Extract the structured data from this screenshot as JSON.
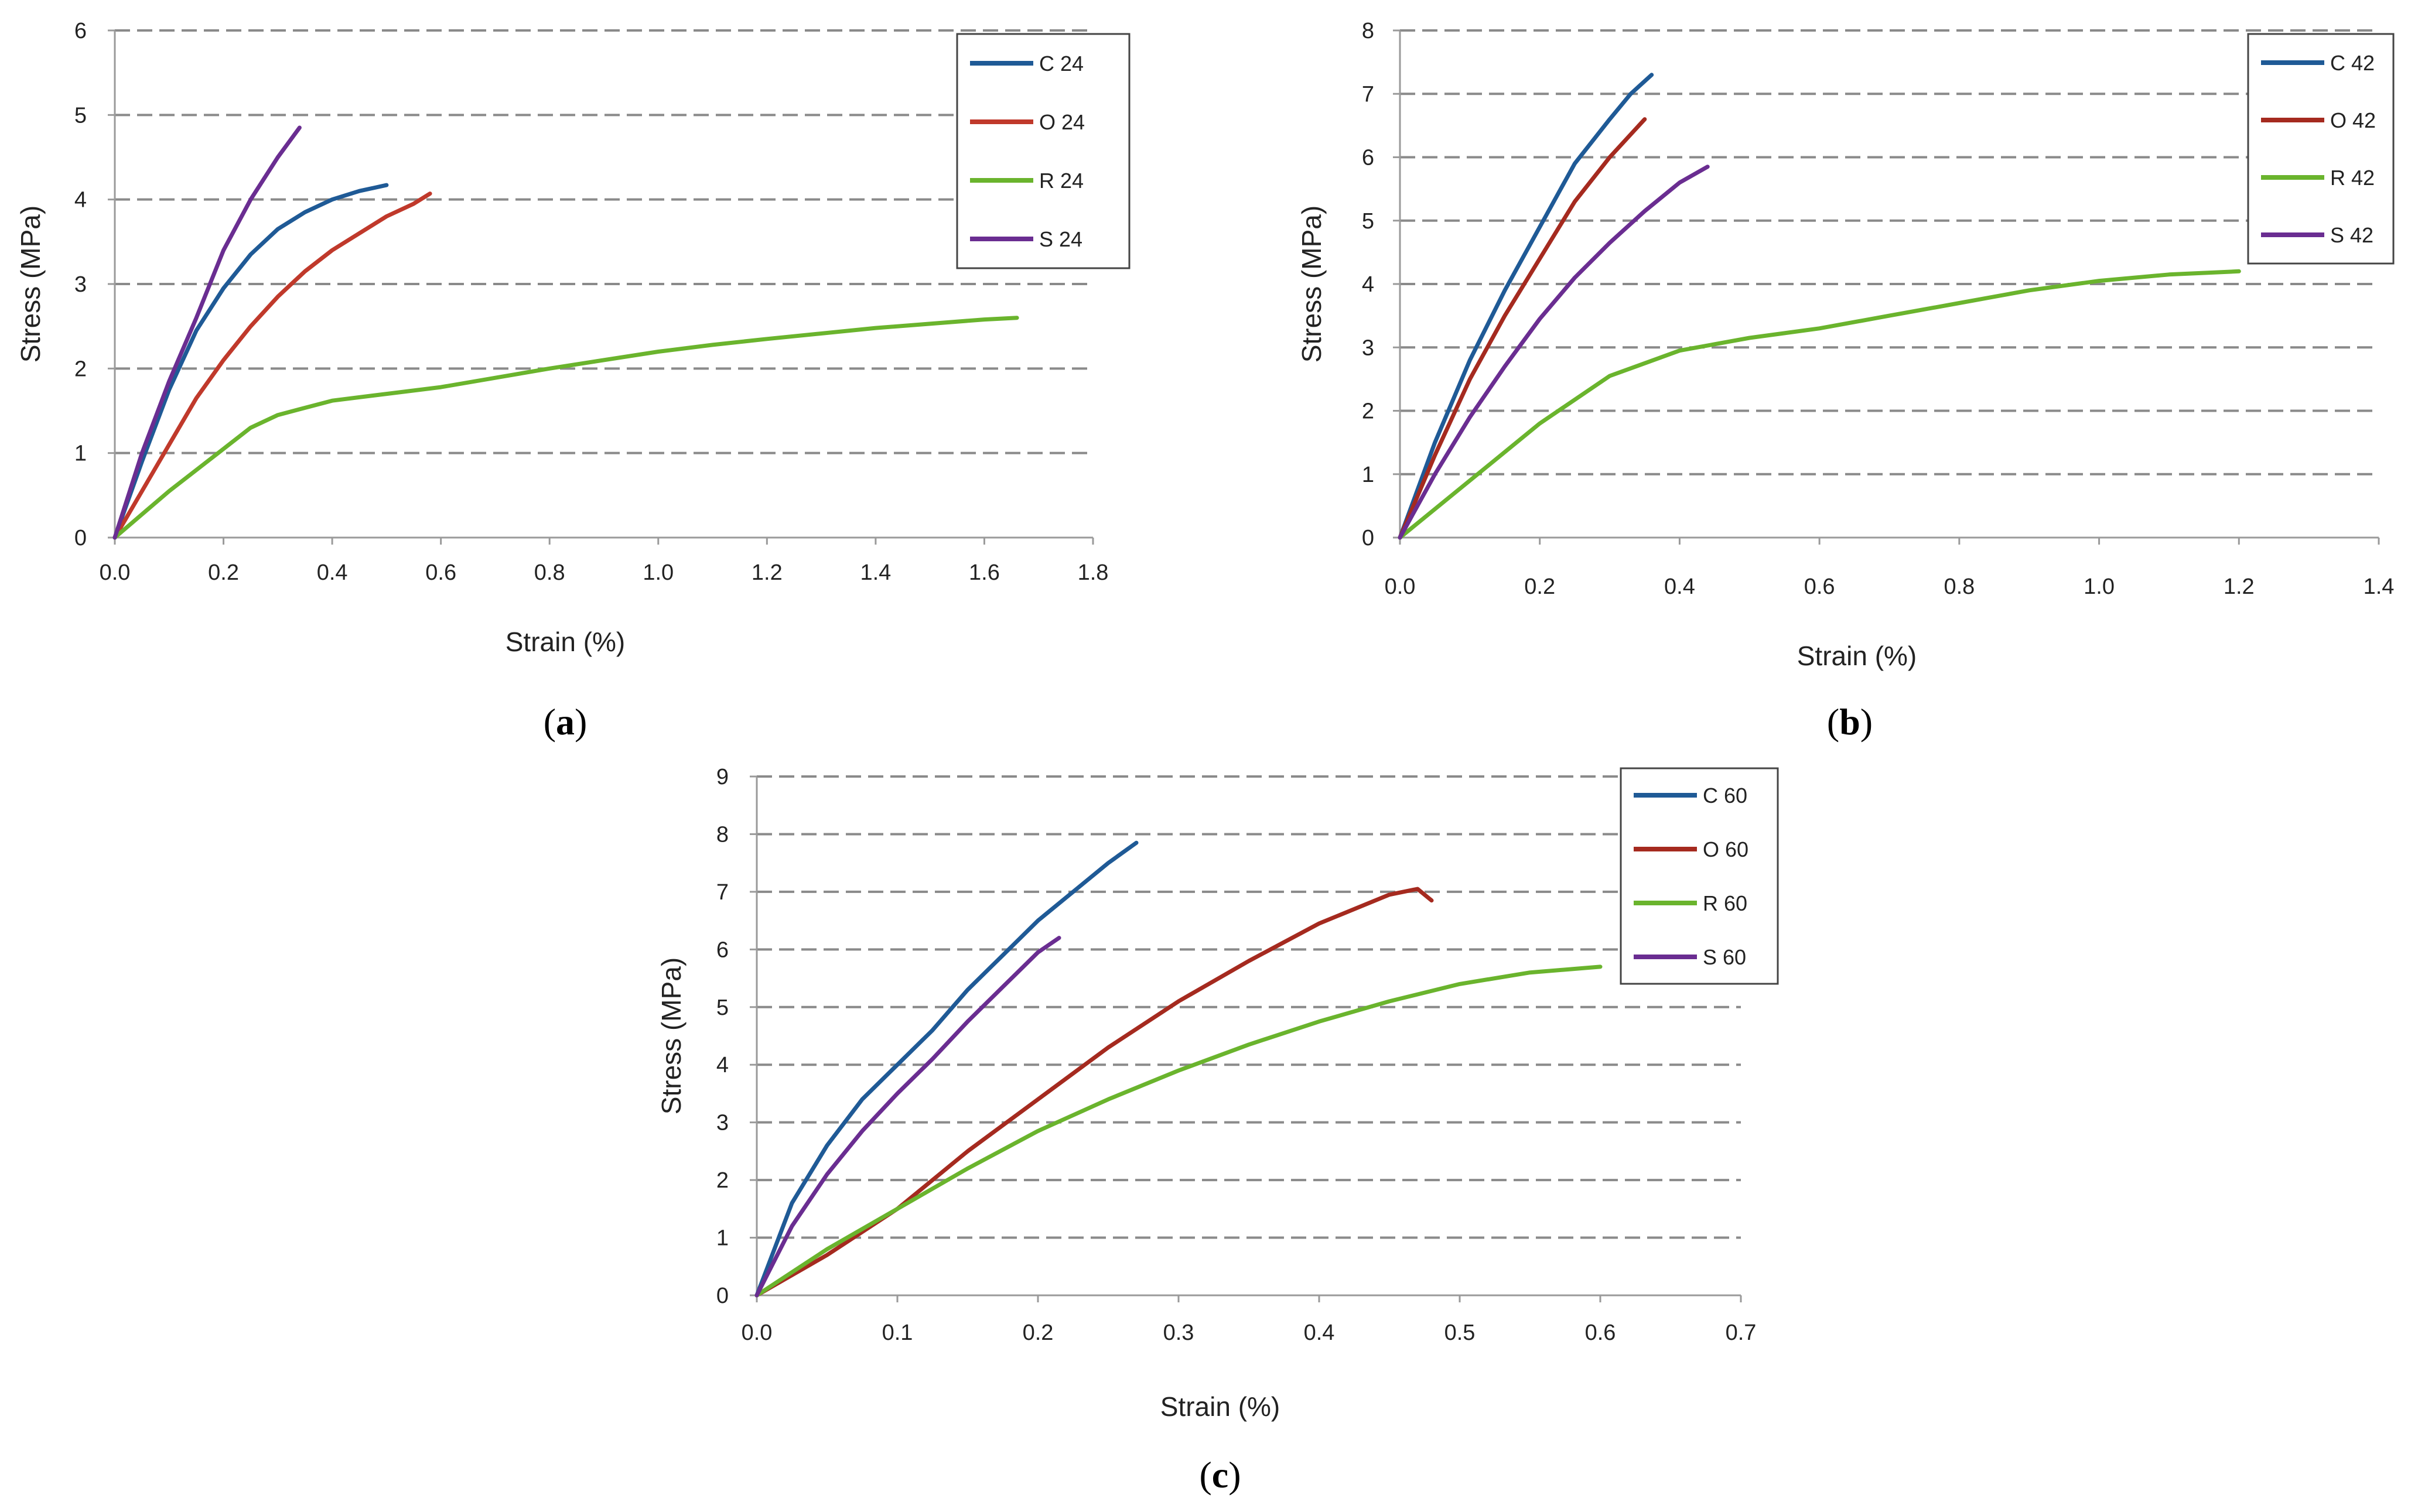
{
  "chart_data": [
    {
      "type": "line",
      "panel_label": "a",
      "xlabel": "Strain (%)",
      "ylabel": "Stress (MPa)",
      "xlim": [
        0,
        1.8
      ],
      "ylim": [
        0,
        6
      ],
      "xticks": [
        "0.0",
        "0.2",
        "0.4",
        "0.6",
        "0.8",
        "1.0",
        "1.2",
        "1.4",
        "1.6",
        "1.8"
      ],
      "yticks": [
        "0",
        "1",
        "2",
        "3",
        "4",
        "5",
        "6"
      ],
      "grid": "horizontal dashed",
      "legend_position": "top-right",
      "series": [
        {
          "name": "C 24",
          "color": "#1f5a96",
          "x": [
            0,
            0.05,
            0.1,
            0.15,
            0.2,
            0.25,
            0.3,
            0.35,
            0.4,
            0.45,
            0.5
          ],
          "y": [
            0,
            0.9,
            1.75,
            2.45,
            2.95,
            3.35,
            3.65,
            3.85,
            4.0,
            4.1,
            4.17
          ]
        },
        {
          "name": "O 24",
          "color": "#c0392b",
          "x": [
            0,
            0.05,
            0.1,
            0.15,
            0.2,
            0.25,
            0.3,
            0.35,
            0.4,
            0.45,
            0.5,
            0.55,
            0.58
          ],
          "y": [
            0,
            0.55,
            1.1,
            1.65,
            2.1,
            2.5,
            2.85,
            3.15,
            3.4,
            3.6,
            3.8,
            3.95,
            4.07
          ]
        },
        {
          "name": "R 24",
          "color": "#6ab42d",
          "x": [
            0,
            0.1,
            0.2,
            0.25,
            0.3,
            0.4,
            0.5,
            0.6,
            0.8,
            1.0,
            1.1,
            1.2,
            1.4,
            1.6,
            1.66
          ],
          "y": [
            0,
            0.55,
            1.05,
            1.3,
            1.45,
            1.62,
            1.7,
            1.78,
            2.0,
            2.2,
            2.28,
            2.35,
            2.48,
            2.58,
            2.6
          ]
        },
        {
          "name": "S 24",
          "color": "#6a2d91",
          "x": [
            0,
            0.05,
            0.1,
            0.15,
            0.2,
            0.25,
            0.3,
            0.34
          ],
          "y": [
            0,
            1.0,
            1.85,
            2.6,
            3.4,
            4.0,
            4.5,
            4.85
          ]
        }
      ]
    },
    {
      "type": "line",
      "panel_label": "b",
      "xlabel": "Strain (%)",
      "ylabel": "Stress (MPa)",
      "xlim": [
        0,
        1.4
      ],
      "ylim": [
        0,
        8
      ],
      "xticks": [
        "0.0",
        "0.2",
        "0.4",
        "0.6",
        "0.8",
        "1.0",
        "1.2",
        "1.4"
      ],
      "yticks": [
        "0",
        "1",
        "2",
        "3",
        "4",
        "5",
        "6",
        "7",
        "8"
      ],
      "grid": "horizontal dashed",
      "legend_position": "top-right",
      "series": [
        {
          "name": "C 42",
          "color": "#1f5a96",
          "x": [
            0,
            0.05,
            0.1,
            0.15,
            0.2,
            0.25,
            0.3,
            0.33,
            0.36
          ],
          "y": [
            0,
            1.5,
            2.8,
            3.9,
            4.9,
            5.9,
            6.6,
            7.0,
            7.3
          ]
        },
        {
          "name": "O 42",
          "color": "#a52a1f",
          "x": [
            0,
            0.05,
            0.1,
            0.15,
            0.2,
            0.25,
            0.3,
            0.35
          ],
          "y": [
            0,
            1.3,
            2.5,
            3.5,
            4.4,
            5.3,
            6.0,
            6.6
          ]
        },
        {
          "name": "R 42",
          "color": "#6ab42d",
          "x": [
            0,
            0.1,
            0.2,
            0.3,
            0.4,
            0.5,
            0.6,
            0.7,
            0.8,
            0.9,
            1.0,
            1.1,
            1.2
          ],
          "y": [
            0,
            0.9,
            1.8,
            2.55,
            2.95,
            3.15,
            3.3,
            3.5,
            3.7,
            3.9,
            4.05,
            4.15,
            4.2
          ]
        },
        {
          "name": "S 42",
          "color": "#6a2d91",
          "x": [
            0,
            0.05,
            0.1,
            0.15,
            0.2,
            0.25,
            0.3,
            0.35,
            0.4,
            0.44
          ],
          "y": [
            0,
            1.0,
            1.9,
            2.7,
            3.45,
            4.1,
            4.65,
            5.15,
            5.6,
            5.85
          ]
        }
      ]
    },
    {
      "type": "line",
      "panel_label": "c",
      "xlabel": "Strain (%)",
      "ylabel": "Stress (MPa)",
      "xlim": [
        0,
        0.7
      ],
      "ylim": [
        0,
        9
      ],
      "xticks": [
        "0.0",
        "0.1",
        "0.2",
        "0.3",
        "0.4",
        "0.5",
        "0.6",
        "0.7"
      ],
      "yticks": [
        "0",
        "1",
        "2",
        "3",
        "4",
        "5",
        "6",
        "7",
        "8",
        "9"
      ],
      "grid": "horizontal dashed",
      "legend_position": "top-right",
      "series": [
        {
          "name": "C 60",
          "color": "#1f5a96",
          "x": [
            0,
            0.025,
            0.05,
            0.075,
            0.1,
            0.125,
            0.15,
            0.175,
            0.2,
            0.225,
            0.25,
            0.27
          ],
          "y": [
            0,
            1.6,
            2.6,
            3.4,
            4.0,
            4.6,
            5.3,
            5.9,
            6.5,
            7.0,
            7.5,
            7.85
          ]
        },
        {
          "name": "O 60",
          "color": "#a52a1f",
          "x": [
            0,
            0.05,
            0.1,
            0.15,
            0.2,
            0.25,
            0.3,
            0.35,
            0.4,
            0.45,
            0.47,
            0.48
          ],
          "y": [
            0,
            0.7,
            1.5,
            2.5,
            3.4,
            4.3,
            5.1,
            5.8,
            6.45,
            6.95,
            7.05,
            6.85
          ]
        },
        {
          "name": "R 60",
          "color": "#6ab42d",
          "x": [
            0,
            0.05,
            0.1,
            0.15,
            0.2,
            0.25,
            0.3,
            0.35,
            0.4,
            0.45,
            0.5,
            0.55,
            0.6
          ],
          "y": [
            0,
            0.8,
            1.5,
            2.2,
            2.85,
            3.4,
            3.9,
            4.35,
            4.75,
            5.1,
            5.4,
            5.6,
            5.7
          ]
        },
        {
          "name": "S 60",
          "color": "#6a2d91",
          "x": [
            0,
            0.025,
            0.05,
            0.075,
            0.1,
            0.125,
            0.15,
            0.175,
            0.2,
            0.215
          ],
          "y": [
            0,
            1.2,
            2.1,
            2.85,
            3.5,
            4.1,
            4.75,
            5.35,
            5.95,
            6.2
          ]
        }
      ]
    }
  ]
}
